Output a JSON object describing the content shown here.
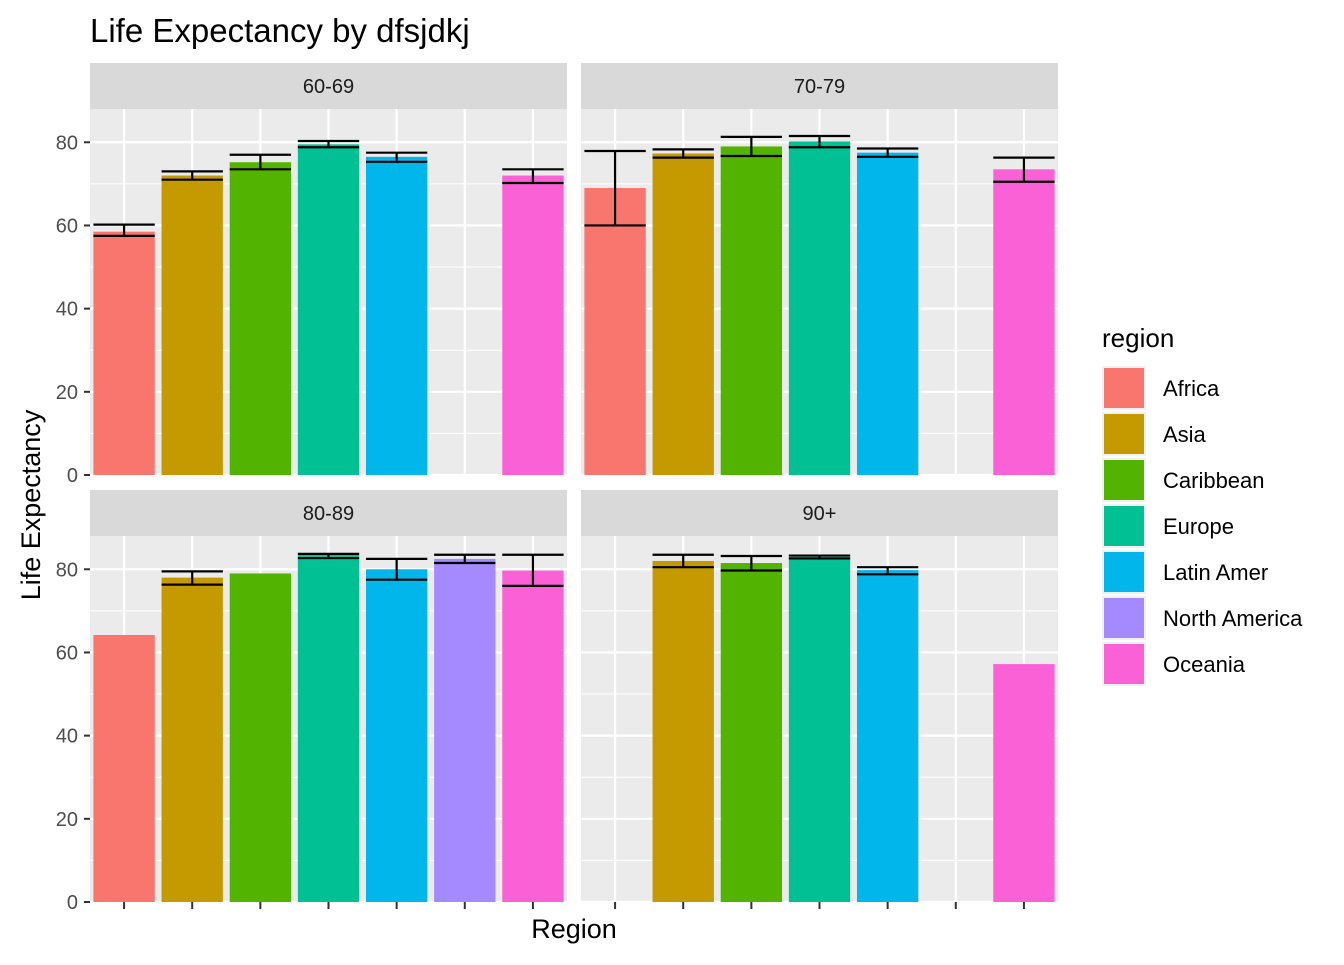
{
  "chart_data": {
    "type": "bar",
    "title": "Life Expectancy by dfsjdkj",
    "xlabel": "Region",
    "ylabel": "Life Expectancy",
    "ylim": [
      0,
      88
    ],
    "yticks": [
      0,
      20,
      40,
      60,
      80
    ],
    "grid": true,
    "legend": {
      "title": "region",
      "position": "right"
    },
    "categories": [
      "Africa",
      "Asia",
      "Caribbean",
      "Europe",
      "Latin Amer",
      "North America",
      "Oceania"
    ],
    "colors": {
      "Africa": "#F8766D",
      "Asia": "#C49A00",
      "Caribbean": "#53B400",
      "Europe": "#00C094",
      "Latin Amer": "#00B6EB",
      "North America": "#A58AFF",
      "Oceania": "#FB61D7"
    },
    "panels": [
      {
        "label": "60-69",
        "values": [
          58.5,
          72,
          75.2,
          79.5,
          76.5,
          null,
          72
        ],
        "error_low": [
          57.5,
          71,
          73.5,
          78.8,
          75.3,
          null,
          70.2
        ],
        "error_high": [
          60.2,
          73,
          77,
          80.3,
          77.5,
          null,
          73.5
        ]
      },
      {
        "label": "70-79",
        "values": [
          69,
          77.3,
          79,
          80.2,
          77.5,
          null,
          73.5
        ],
        "error_low": [
          60,
          76.3,
          76.7,
          78.8,
          76.5,
          null,
          70.5
        ],
        "error_high": [
          77.9,
          78.3,
          81.3,
          81.5,
          78.5,
          null,
          76.3
        ]
      },
      {
        "label": "80-89",
        "values": [
          64.2,
          78,
          79,
          83.5,
          80,
          82.5,
          79.7
        ],
        "error_low": [
          null,
          76.3,
          null,
          82.7,
          77.5,
          81.5,
          76
        ],
        "error_high": [
          null,
          79.5,
          null,
          83.7,
          82.5,
          83.5,
          83.5
        ]
      },
      {
        "label": "90+",
        "values": [
          null,
          82,
          81.5,
          83,
          79.8,
          null,
          57.2
        ],
        "error_low": [
          null,
          80.5,
          79.7,
          82.6,
          78.8,
          null,
          null
        ],
        "error_high": [
          null,
          83.5,
          83.2,
          83.3,
          80.5,
          null,
          null
        ]
      }
    ]
  }
}
